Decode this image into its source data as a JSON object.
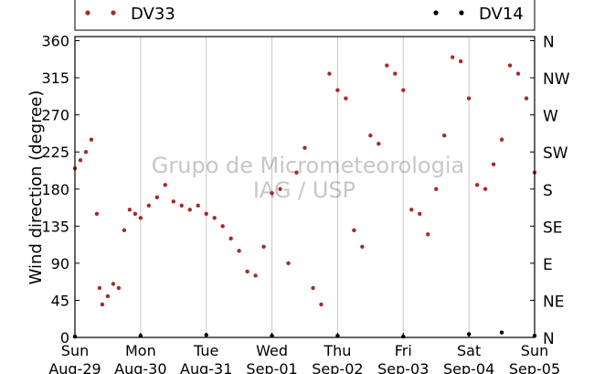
{
  "chart_data": {
    "type": "scatter",
    "ylabel": "Wind direction (degree)",
    "ylim": [
      0,
      365
    ],
    "yticks": [
      0,
      45,
      90,
      135,
      180,
      225,
      270,
      315,
      360
    ],
    "compass_ticks": [
      {
        "value": 0,
        "label": "N"
      },
      {
        "value": 45,
        "label": "NE"
      },
      {
        "value": 90,
        "label": "E"
      },
      {
        "value": 135,
        "label": "SE"
      },
      {
        "value": 180,
        "label": "S"
      },
      {
        "value": 225,
        "label": "SW"
      },
      {
        "value": 270,
        "label": "W"
      },
      {
        "value": 315,
        "label": "NW"
      },
      {
        "value": 360,
        "label": "N"
      }
    ],
    "xlim": [
      "Aug-29",
      "Sep-05"
    ],
    "xticks": [
      {
        "day": "Sun",
        "date": "Aug-29"
      },
      {
        "day": "Mon",
        "date": "Aug-30"
      },
      {
        "day": "Tue",
        "date": "Aug-31"
      },
      {
        "day": "Wed",
        "date": "Sep-01"
      },
      {
        "day": "Thu",
        "date": "Sep-02"
      },
      {
        "day": "Fri",
        "date": "Sep-03"
      },
      {
        "day": "Sat",
        "date": "Sep-04"
      },
      {
        "day": "Sun",
        "date": "Sep-05"
      }
    ],
    "grid": "vertical",
    "legend": "top",
    "watermark": [
      "Grupo de Micrometeorologia",
      "IAG / USP"
    ],
    "series": [
      {
        "name": "DV33",
        "color": "#a52a2a",
        "points": [
          [
            "Aug-29 00:00",
            205
          ],
          [
            "Aug-29 02:00",
            215
          ],
          [
            "Aug-29 04:00",
            225
          ],
          [
            "Aug-29 06:00",
            240
          ],
          [
            "Aug-29 08:00",
            150
          ],
          [
            "Aug-29 09:00",
            60
          ],
          [
            "Aug-29 10:00",
            40
          ],
          [
            "Aug-29 12:00",
            50
          ],
          [
            "Aug-29 14:00",
            65
          ],
          [
            "Aug-29 16:00",
            60
          ],
          [
            "Aug-29 18:00",
            130
          ],
          [
            "Aug-29 20:00",
            155
          ],
          [
            "Aug-29 22:00",
            150
          ],
          [
            "Aug-30 00:00",
            145
          ],
          [
            "Aug-30 03:00",
            160
          ],
          [
            "Aug-30 06:00",
            170
          ],
          [
            "Aug-30 09:00",
            185
          ],
          [
            "Aug-30 12:00",
            165
          ],
          [
            "Aug-30 15:00",
            160
          ],
          [
            "Aug-30 18:00",
            155
          ],
          [
            "Aug-30 21:00",
            160
          ],
          [
            "Aug-31 00:00",
            150
          ],
          [
            "Aug-31 03:00",
            145
          ],
          [
            "Aug-31 06:00",
            135
          ],
          [
            "Aug-31 09:00",
            120
          ],
          [
            "Aug-31 12:00",
            105
          ],
          [
            "Aug-31 15:00",
            80
          ],
          [
            "Aug-31 18:00",
            75
          ],
          [
            "Aug-31 21:00",
            110
          ],
          [
            "Sep-01 00:00",
            175
          ],
          [
            "Sep-01 03:00",
            180
          ],
          [
            "Sep-01 06:00",
            90
          ],
          [
            "Sep-01 09:00",
            200
          ],
          [
            "Sep-01 12:00",
            230
          ],
          [
            "Sep-01 15:00",
            60
          ],
          [
            "Sep-01 18:00",
            40
          ],
          [
            "Sep-01 21:00",
            320
          ],
          [
            "Sep-02 00:00",
            300
          ],
          [
            "Sep-02 03:00",
            290
          ],
          [
            "Sep-02 06:00",
            130
          ],
          [
            "Sep-02 09:00",
            110
          ],
          [
            "Sep-02 12:00",
            245
          ],
          [
            "Sep-02 15:00",
            235
          ],
          [
            "Sep-02 18:00",
            330
          ],
          [
            "Sep-02 21:00",
            320
          ],
          [
            "Sep-03 00:00",
            300
          ],
          [
            "Sep-03 03:00",
            155
          ],
          [
            "Sep-03 06:00",
            150
          ],
          [
            "Sep-03 09:00",
            125
          ],
          [
            "Sep-03 12:00",
            180
          ],
          [
            "Sep-03 15:00",
            245
          ],
          [
            "Sep-03 18:00",
            340
          ],
          [
            "Sep-03 21:00",
            335
          ],
          [
            "Sep-04 00:00",
            290
          ],
          [
            "Sep-04 03:00",
            185
          ],
          [
            "Sep-04 06:00",
            180
          ],
          [
            "Sep-04 09:00",
            210
          ],
          [
            "Sep-04 12:00",
            240
          ],
          [
            "Sep-04 15:00",
            330
          ],
          [
            "Sep-04 18:00",
            320
          ],
          [
            "Sep-04 21:00",
            290
          ],
          [
            "Sep-05 00:00",
            200
          ]
        ]
      },
      {
        "name": "DV14",
        "color": "#000000",
        "points": [
          [
            "Aug-29 00:00",
            1
          ],
          [
            "Aug-30 00:00",
            2
          ],
          [
            "Aug-31 00:00",
            3
          ],
          [
            "Sep-01 00:00",
            2
          ],
          [
            "Sep-02 00:00",
            2
          ],
          [
            "Sep-03 00:00",
            1
          ],
          [
            "Sep-04 00:00",
            4
          ],
          [
            "Sep-04 12:00",
            6
          ],
          [
            "Sep-05 00:00",
            2
          ]
        ]
      }
    ]
  }
}
